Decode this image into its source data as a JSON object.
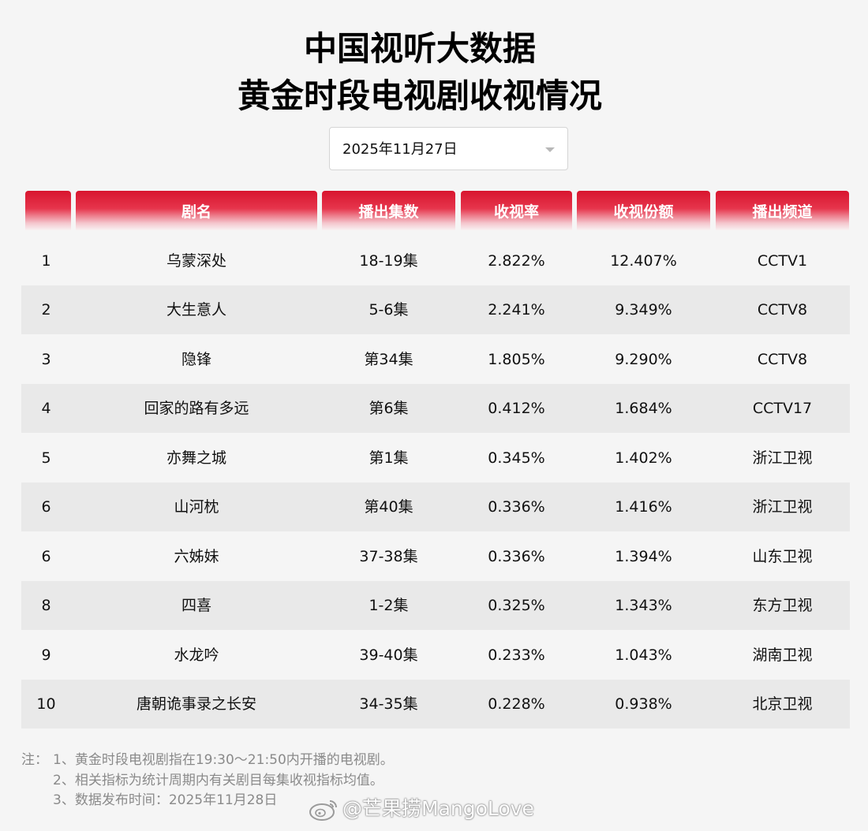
{
  "title": {
    "line1": "中国视听大数据",
    "line2": "黄金时段电视剧收视情况"
  },
  "date_select": {
    "value": "2025年11月27日",
    "icon": "chevron-down-icon"
  },
  "table": {
    "headers": [
      "",
      "剧名",
      "播出集数",
      "收视率",
      "收视份额",
      "播出频道"
    ],
    "rows": [
      {
        "rank": "1",
        "name": "乌蒙深处",
        "episodes": "18-19集",
        "rating": "2.822%",
        "share": "12.407%",
        "channel": "CCTV1"
      },
      {
        "rank": "2",
        "name": "大生意人",
        "episodes": "5-6集",
        "rating": "2.241%",
        "share": "9.349%",
        "channel": "CCTV8"
      },
      {
        "rank": "3",
        "name": "隐锋",
        "episodes": "第34集",
        "rating": "1.805%",
        "share": "9.290%",
        "channel": "CCTV8"
      },
      {
        "rank": "4",
        "name": "回家的路有多远",
        "episodes": "第6集",
        "rating": "0.412%",
        "share": "1.684%",
        "channel": "CCTV17"
      },
      {
        "rank": "5",
        "name": "亦舞之城",
        "episodes": "第1集",
        "rating": "0.345%",
        "share": "1.402%",
        "channel": "浙江卫视"
      },
      {
        "rank": "6",
        "name": "山河枕",
        "episodes": "第40集",
        "rating": "0.336%",
        "share": "1.416%",
        "channel": "浙江卫视"
      },
      {
        "rank": "6",
        "name": "六姊妹",
        "episodes": "37-38集",
        "rating": "0.336%",
        "share": "1.394%",
        "channel": "山东卫视"
      },
      {
        "rank": "8",
        "name": "四喜",
        "episodes": "1-2集",
        "rating": "0.325%",
        "share": "1.343%",
        "channel": "东方卫视"
      },
      {
        "rank": "9",
        "name": "水龙吟",
        "episodes": "39-40集",
        "rating": "0.233%",
        "share": "1.043%",
        "channel": "湖南卫视"
      },
      {
        "rank": "10",
        "name": "唐朝诡事录之长安",
        "episodes": "34-35集",
        "rating": "0.228%",
        "share": "0.938%",
        "channel": "北京卫视"
      }
    ]
  },
  "notes": {
    "prefix": "注：",
    "line1": "1、黄金时段电视剧指在19:30～21:50内开播的电视剧。",
    "line2": "2、相关指标为统计周期内有关剧目每集收视指标均值。",
    "line3": "3、数据发布时间：2025年11月28日"
  },
  "watermark": {
    "text": "@芒果捞MangoLove",
    "icon": "weibo-logo-icon"
  },
  "colors": {
    "header_red": "#d8152e",
    "row_light": "#f5f5f5",
    "row_dark": "#e9e9e9",
    "note_gray": "#8a8a8a"
  }
}
